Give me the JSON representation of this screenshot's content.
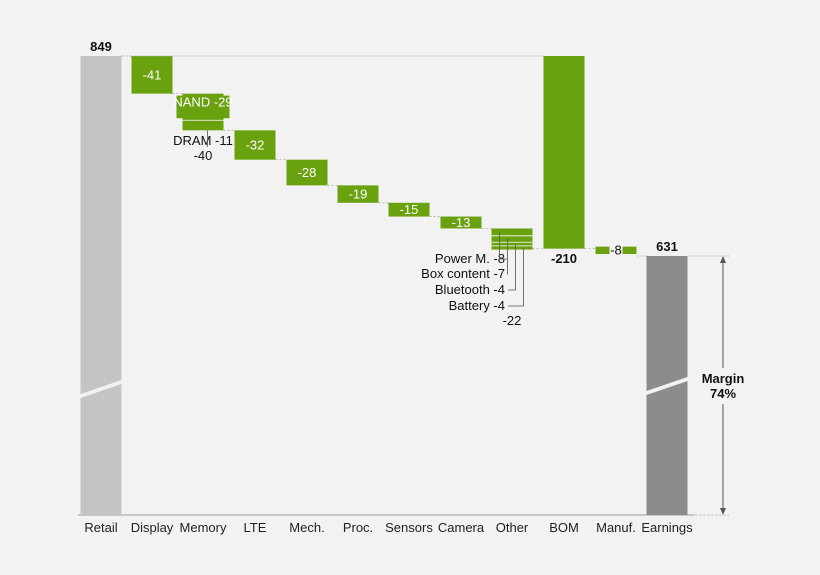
{
  "chart_data": {
    "type": "waterfall",
    "categories": [
      "Retail",
      "Display",
      "Memory",
      "LTE",
      "Mech.",
      "Proc.",
      "Sensors",
      "Camera",
      "Other",
      "BOM",
      "Manuf.",
      "Earnings"
    ],
    "steps": [
      {
        "category": "Retail",
        "kind": "total",
        "value": 849,
        "label": "849"
      },
      {
        "category": "Display",
        "kind": "delta",
        "value": -41,
        "label": "-41"
      },
      {
        "category": "Memory",
        "kind": "delta",
        "value": -40,
        "label": "-40",
        "components": [
          {
            "name": "NAND",
            "value": -29,
            "label": "NAND -29"
          },
          {
            "name": "DRAM",
            "value": -11,
            "label": "DRAM -11"
          }
        ]
      },
      {
        "category": "LTE",
        "kind": "delta",
        "value": -32,
        "label": "-32"
      },
      {
        "category": "Mech.",
        "kind": "delta",
        "value": -28,
        "label": "-28"
      },
      {
        "category": "Proc.",
        "kind": "delta",
        "value": -19,
        "label": "-19"
      },
      {
        "category": "Sensors",
        "kind": "delta",
        "value": -15,
        "label": "-15"
      },
      {
        "category": "Camera",
        "kind": "delta",
        "value": -13,
        "label": "-13"
      },
      {
        "category": "Other",
        "kind": "delta",
        "value": -22,
        "label": "-22",
        "components": [
          {
            "name": "Power M.",
            "value": -8,
            "label": "Power M. -8"
          },
          {
            "name": "Box content",
            "value": -7,
            "label": "Box content -7"
          },
          {
            "name": "Bluetooth",
            "value": -4,
            "label": "Bluetooth -4"
          },
          {
            "name": "Battery",
            "value": -4,
            "label": "Battery -4"
          }
        ]
      },
      {
        "category": "BOM",
        "kind": "subtotal-delta",
        "value": -210,
        "label": "-210"
      },
      {
        "category": "Manuf.",
        "kind": "delta",
        "value": -8,
        "label": "-8"
      },
      {
        "category": "Earnings",
        "kind": "total",
        "value": 631,
        "label": "631"
      }
    ],
    "annotation": {
      "text_line1": "Margin",
      "text_line2": "74%"
    },
    "axis_break": true,
    "colors": {
      "delta": "#6aa10f",
      "retail": "#c4c4c4",
      "earnings": "#8c8c8c",
      "background": "#f2f2f2"
    }
  }
}
